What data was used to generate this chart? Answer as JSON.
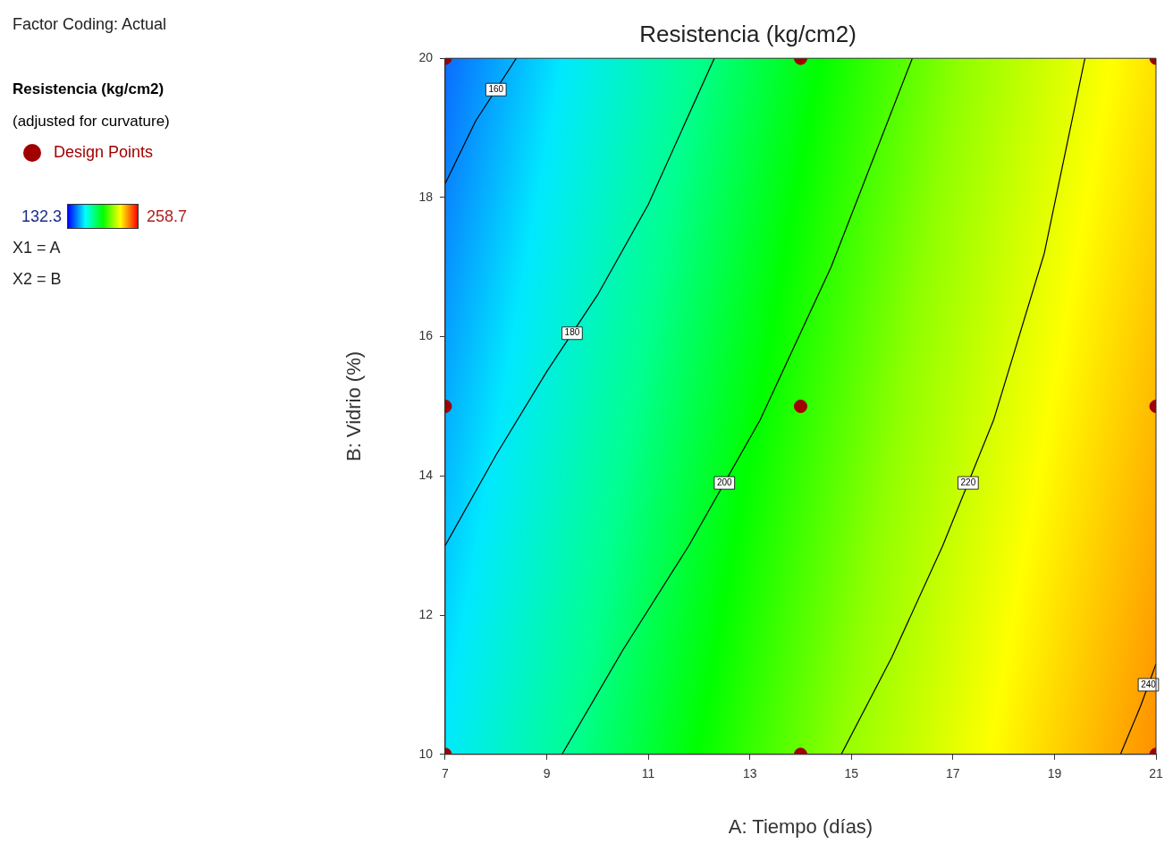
{
  "chart_data": {
    "type": "line",
    "title": "Resistencia (kg/cm2)",
    "xlabel": "A: Tiempo (días)",
    "ylabel": "B: Vidrio (%)",
    "legend_title": "Resistencia (kg/cm2)",
    "legend": "top left",
    "grid": false,
    "xlim": [
      7,
      21
    ],
    "xticks": [
      7,
      9,
      11,
      13,
      15,
      17,
      19,
      21
    ],
    "ylim": [
      10,
      20
    ],
    "yticks": [
      10,
      12,
      14,
      16,
      18,
      20
    ],
    "annotations": [
      "Factor Coding: Actual",
      "(adjusted for curvature)",
      "X1 = A",
      "X2 = B",
      "132.3",
      "258.7"
    ],
    "series": [
      {
        "name": "160",
        "type": "line",
        "color": "#000000",
        "x": [
          7,
          7.6,
          8.4
        ],
        "values": [
          18.2,
          19.1,
          20
        ]
      },
      {
        "name": "180",
        "type": "line",
        "color": "#000000",
        "x": [
          7,
          8,
          9,
          10,
          11,
          12.3
        ],
        "values": [
          13,
          14.3,
          15.5,
          16.6,
          17.9,
          20
        ]
      },
      {
        "name": "200",
        "type": "line",
        "color": "#000000",
        "x": [
          9.3,
          10.5,
          11.8,
          13.2,
          14.6,
          16.2
        ],
        "values": [
          10,
          11.5,
          13,
          14.8,
          17,
          20
        ]
      },
      {
        "name": "220",
        "type": "line",
        "color": "#000000",
        "x": [
          14.8,
          15.8,
          16.8,
          17.8,
          18.8,
          19.6
        ],
        "values": [
          10,
          11.4,
          13,
          14.8,
          17.2,
          20
        ]
      },
      {
        "name": "240",
        "type": "line",
        "color": "#000000",
        "x": [
          20.3,
          20.7,
          21
        ],
        "values": [
          10,
          10.7,
          11.3
        ]
      },
      {
        "name": "Design Points",
        "type": "scatter",
        "color": "#a00000",
        "marker": "circle",
        "x": [
          7,
          7,
          7,
          14,
          14,
          14,
          21,
          21,
          21
        ],
        "values": [
          10,
          15,
          20,
          10,
          15,
          20,
          10,
          15,
          20
        ]
      }
    ]
  }
}
